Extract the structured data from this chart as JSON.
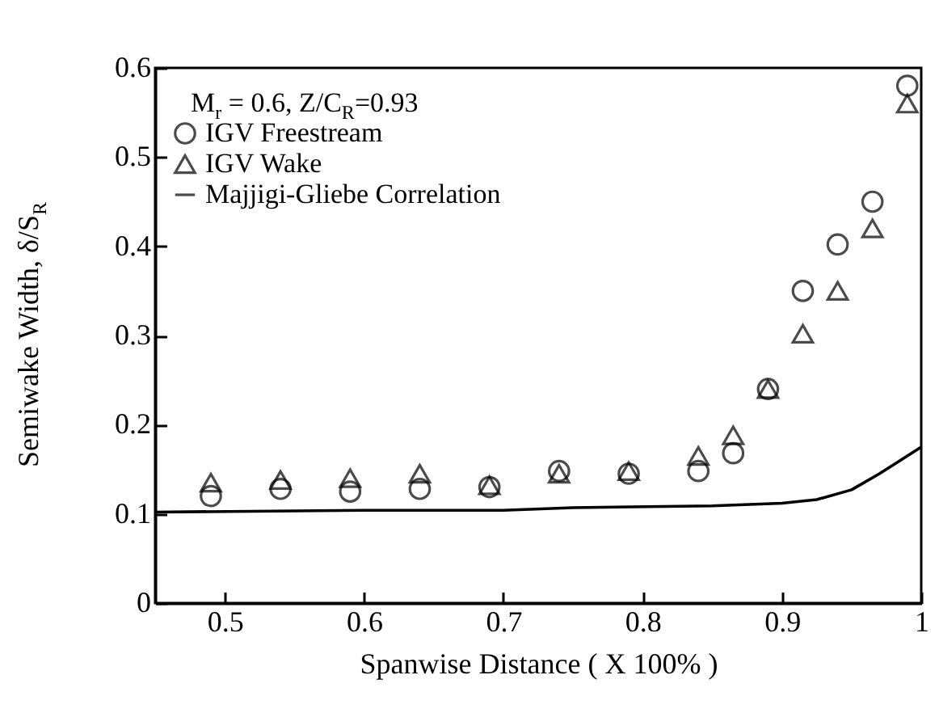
{
  "chart_data": {
    "type": "scatter",
    "xlabel": "Spanwise Distance  ( X 100% )",
    "ylabel": "Semiwake Width, δ/S$_{R}$",
    "annotations": [
      "M$_{r}$ = 0.6, Z/C$_{R}$=0.93"
    ],
    "x": [
      0.49,
      0.54,
      0.59,
      0.64,
      0.69,
      0.74,
      0.79,
      0.84,
      0.865,
      0.89,
      0.915,
      0.94,
      0.965,
      0.99
    ],
    "series": [
      {
        "name": "IGV Freestream",
        "color": "#000000",
        "marker": "circle",
        "values": [
          0.12,
          0.128,
          0.125,
          0.128,
          0.13,
          0.148,
          0.145,
          0.148,
          0.168,
          0.24,
          0.35,
          0.402,
          0.45,
          0.58
        ]
      },
      {
        "name": "IGV Wake",
        "color": "#000000",
        "marker": "triangle",
        "values": [
          0.135,
          0.138,
          0.14,
          0.145,
          0.132,
          0.145,
          0.148,
          0.165,
          0.188,
          0.24,
          0.302,
          0.35,
          0.42,
          0.56
        ]
      },
      {
        "name": "Majjigi-Gliebe Correlation",
        "color": "#000000",
        "type": "line",
        "line_style": "solid",
        "x": [
          0.45,
          0.6,
          0.7,
          0.75,
          0.85,
          0.9,
          0.925,
          0.95,
          0.97,
          1.0
        ],
        "values": [
          0.102,
          0.104,
          0.104,
          0.107,
          0.109,
          0.112,
          0.116,
          0.127,
          0.145,
          0.175
        ]
      }
    ],
    "xlim": [
      0.45,
      1
    ],
    "xticks": [
      0.5,
      0.6,
      0.7,
      0.8,
      0.9,
      1
    ],
    "ylim": [
      0,
      0.6
    ],
    "yticks": [
      0,
      0.1,
      0.2,
      0.3,
      0.4,
      0.5,
      0.6
    ],
    "legend": "top left",
    "grid": false
  }
}
